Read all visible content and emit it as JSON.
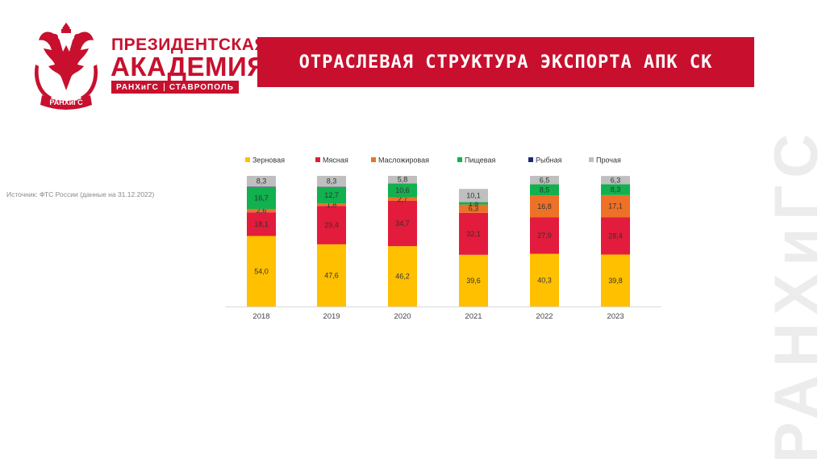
{
  "logo": {
    "line1": "ПРЕЗИДЕНТСКАЯ",
    "line2": "АКАДЕМИЯ",
    "tag_left": "РАНХиГС",
    "tag_right": "СТАВРОПОЛЬ",
    "crest_ribbon": "РАНХиГС",
    "crest_icon": "double-headed-eagle-icon"
  },
  "title": "ОТРАСЛЕВАЯ СТРУКТУРА ЭКСПОРТА АПК СК",
  "source": "Источник: ФТС России (данные на 31.12.2022)",
  "watermark": "РАНХиГС",
  "colors": {
    "brand": "#c8102e",
    "Зерновая": "#ffc000",
    "Мясная": "#e31b3c",
    "Масложировая": "#ed7126",
    "Пищевая": "#12b04e",
    "Рыбная": "#1f2a6e",
    "Прочая": "#bfbfbf"
  },
  "chart_data": {
    "type": "bar",
    "stacked": true,
    "categories": [
      "2018",
      "2019",
      "2020",
      "2021",
      "2022",
      "2023"
    ],
    "series": [
      {
        "name": "Зерновая",
        "values": [
          54.0,
          47.6,
          46.2,
          39.6,
          40.3,
          39.8
        ],
        "labels": [
          "54,0",
          "47,6",
          "46,2",
          "39,6",
          "40,3",
          "39,8"
        ]
      },
      {
        "name": "Мясная",
        "values": [
          18.1,
          29.4,
          34.7,
          32.1,
          27.9,
          28.4
        ],
        "labels": [
          "18,1",
          "29,4",
          "34,7",
          "32,1",
          "27,9",
          "28,4"
        ]
      },
      {
        "name": "Масложировая",
        "values": [
          2.6,
          1.8,
          2.7,
          6.3,
          16.8,
          17.1
        ],
        "labels": [
          "2,6",
          "1,8",
          "2,7",
          "6,3",
          "16,8",
          "17,1"
        ]
      },
      {
        "name": "Пищевая",
        "values": [
          16.7,
          12.7,
          10.6,
          1.8,
          8.5,
          8.3
        ],
        "labels": [
          "16,7",
          "12,7",
          "10,6",
          "1,8",
          "8,5",
          "8,3"
        ]
      },
      {
        "name": "Рыбная",
        "values": [
          0.3,
          0.2,
          0.0,
          0.1,
          0.0,
          0.0
        ],
        "labels": [
          "",
          "",
          "",
          "",
          "",
          ""
        ]
      },
      {
        "name": "Прочая",
        "values": [
          8.3,
          8.3,
          5.8,
          10.1,
          6.5,
          6.3
        ],
        "labels": [
          "8,3",
          "8,3",
          "5,8",
          "10,1",
          "6,5",
          "6,3"
        ]
      }
    ],
    "ylim": [
      0,
      100
    ],
    "legend_position": "top",
    "grid": false,
    "xlabel": "",
    "ylabel": ""
  }
}
